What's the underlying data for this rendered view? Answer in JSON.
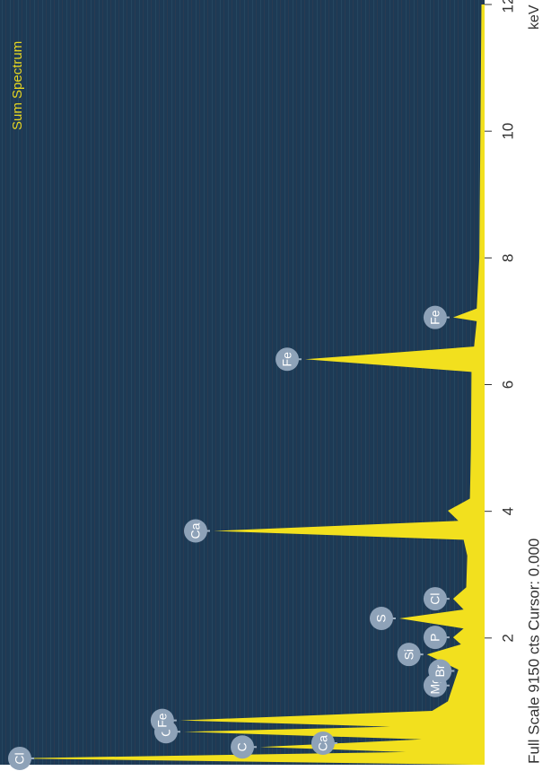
{
  "chart_data": {
    "type": "area",
    "title": "Sum Spectrum",
    "footer": "Full Scale 9150 cts Cursor: 0.000",
    "x_label": "keV",
    "x": [
      0,
      0.1,
      0.2,
      0.28,
      0.4,
      0.52,
      0.6,
      0.7,
      0.85,
      1.0,
      1.25,
      1.5,
      1.74,
      1.9,
      2.01,
      2.15,
      2.31,
      2.45,
      2.62,
      2.8,
      3.3,
      3.55,
      3.69,
      3.85,
      4.01,
      4.2,
      5,
      6.2,
      6.4,
      6.6,
      7.0,
      7.06,
      7.2,
      8,
      10,
      12
    ],
    "series": [
      {
        "color": "#f2e01e",
        "values": [
          200,
          9060,
          1500,
          4275,
          1200,
          5730,
          1800,
          5800,
          1000,
          700,
          600,
          500,
          1100,
          450,
          600,
          400,
          1625,
          400,
          600,
          350,
          330,
          400,
          5165,
          500,
          700,
          280,
          260,
          250,
          3420,
          200,
          150,
          600,
          150,
          100,
          80,
          60
        ]
      }
    ],
    "annotations": [
      {
        "label": "Cl",
        "x": 0.1
      },
      {
        "label": "Ca",
        "x": 0.34
      },
      {
        "label": "C",
        "x": 0.28
      },
      {
        "label": "O",
        "x": 0.52
      },
      {
        "label": "Fe",
        "x": 0.7
      },
      {
        "label": "Mg",
        "x": 1.25
      },
      {
        "label": "Br",
        "x": 1.48
      },
      {
        "label": "Si",
        "x": 1.74
      },
      {
        "label": "P",
        "x": 2.01
      },
      {
        "label": "S",
        "x": 2.31
      },
      {
        "label": "Cl",
        "x": 2.62
      },
      {
        "label": "Ca",
        "x": 3.69
      },
      {
        "label": "Fe",
        "x": 6.4
      },
      {
        "label": "Fe",
        "x": 7.06
      }
    ],
    "xlim": [
      0,
      12
    ],
    "xticks": [
      2,
      4,
      6,
      8,
      10,
      12
    ],
    "ylim": [
      0,
      9150
    ]
  }
}
